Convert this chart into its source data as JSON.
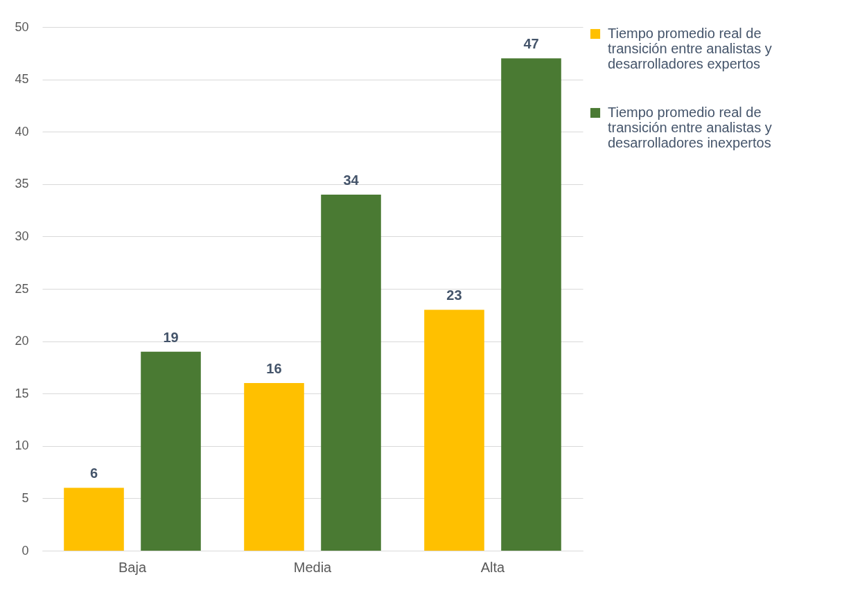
{
  "chart_data": {
    "type": "bar",
    "categories": [
      "Baja",
      "Media",
      "Alta"
    ],
    "series": [
      {
        "name": "Tiempo promedio real de transición entre analistas y desarrolladores expertos",
        "color": "#ffc000",
        "values": [
          6,
          16,
          23
        ]
      },
      {
        "name": "Tiempo promedio real de transición entre analistas y desarrolladores inexpertos",
        "color": "#4a7a33",
        "values": [
          19,
          34,
          47
        ]
      }
    ],
    "ylim": [
      0,
      50
    ],
    "yticks": [
      0,
      5,
      10,
      15,
      20,
      25,
      30,
      35,
      40,
      45,
      50
    ],
    "grid": "y",
    "legend": "right",
    "data_labels": true
  }
}
